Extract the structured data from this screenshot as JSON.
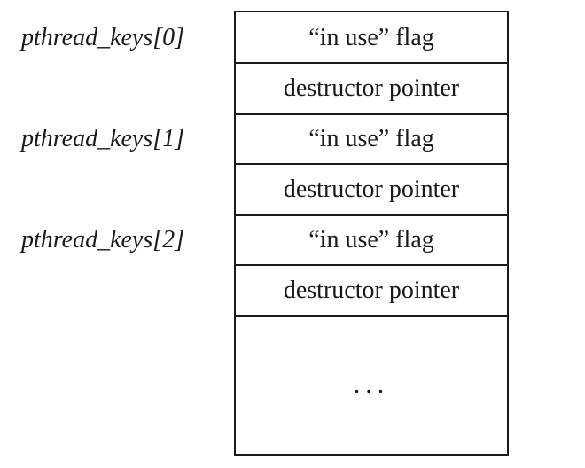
{
  "keys": [
    {
      "label": "pthread_keys[0]"
    },
    {
      "label": "pthread_keys[1]"
    },
    {
      "label": "pthread_keys[2]"
    }
  ],
  "rows": [
    {
      "flag": "“in use” flag",
      "destructor": "destructor pointer"
    },
    {
      "flag": "“in use” flag",
      "destructor": "destructor pointer"
    },
    {
      "flag": "“in use” flag",
      "destructor": "destructor pointer"
    }
  ],
  "continuation": "..."
}
